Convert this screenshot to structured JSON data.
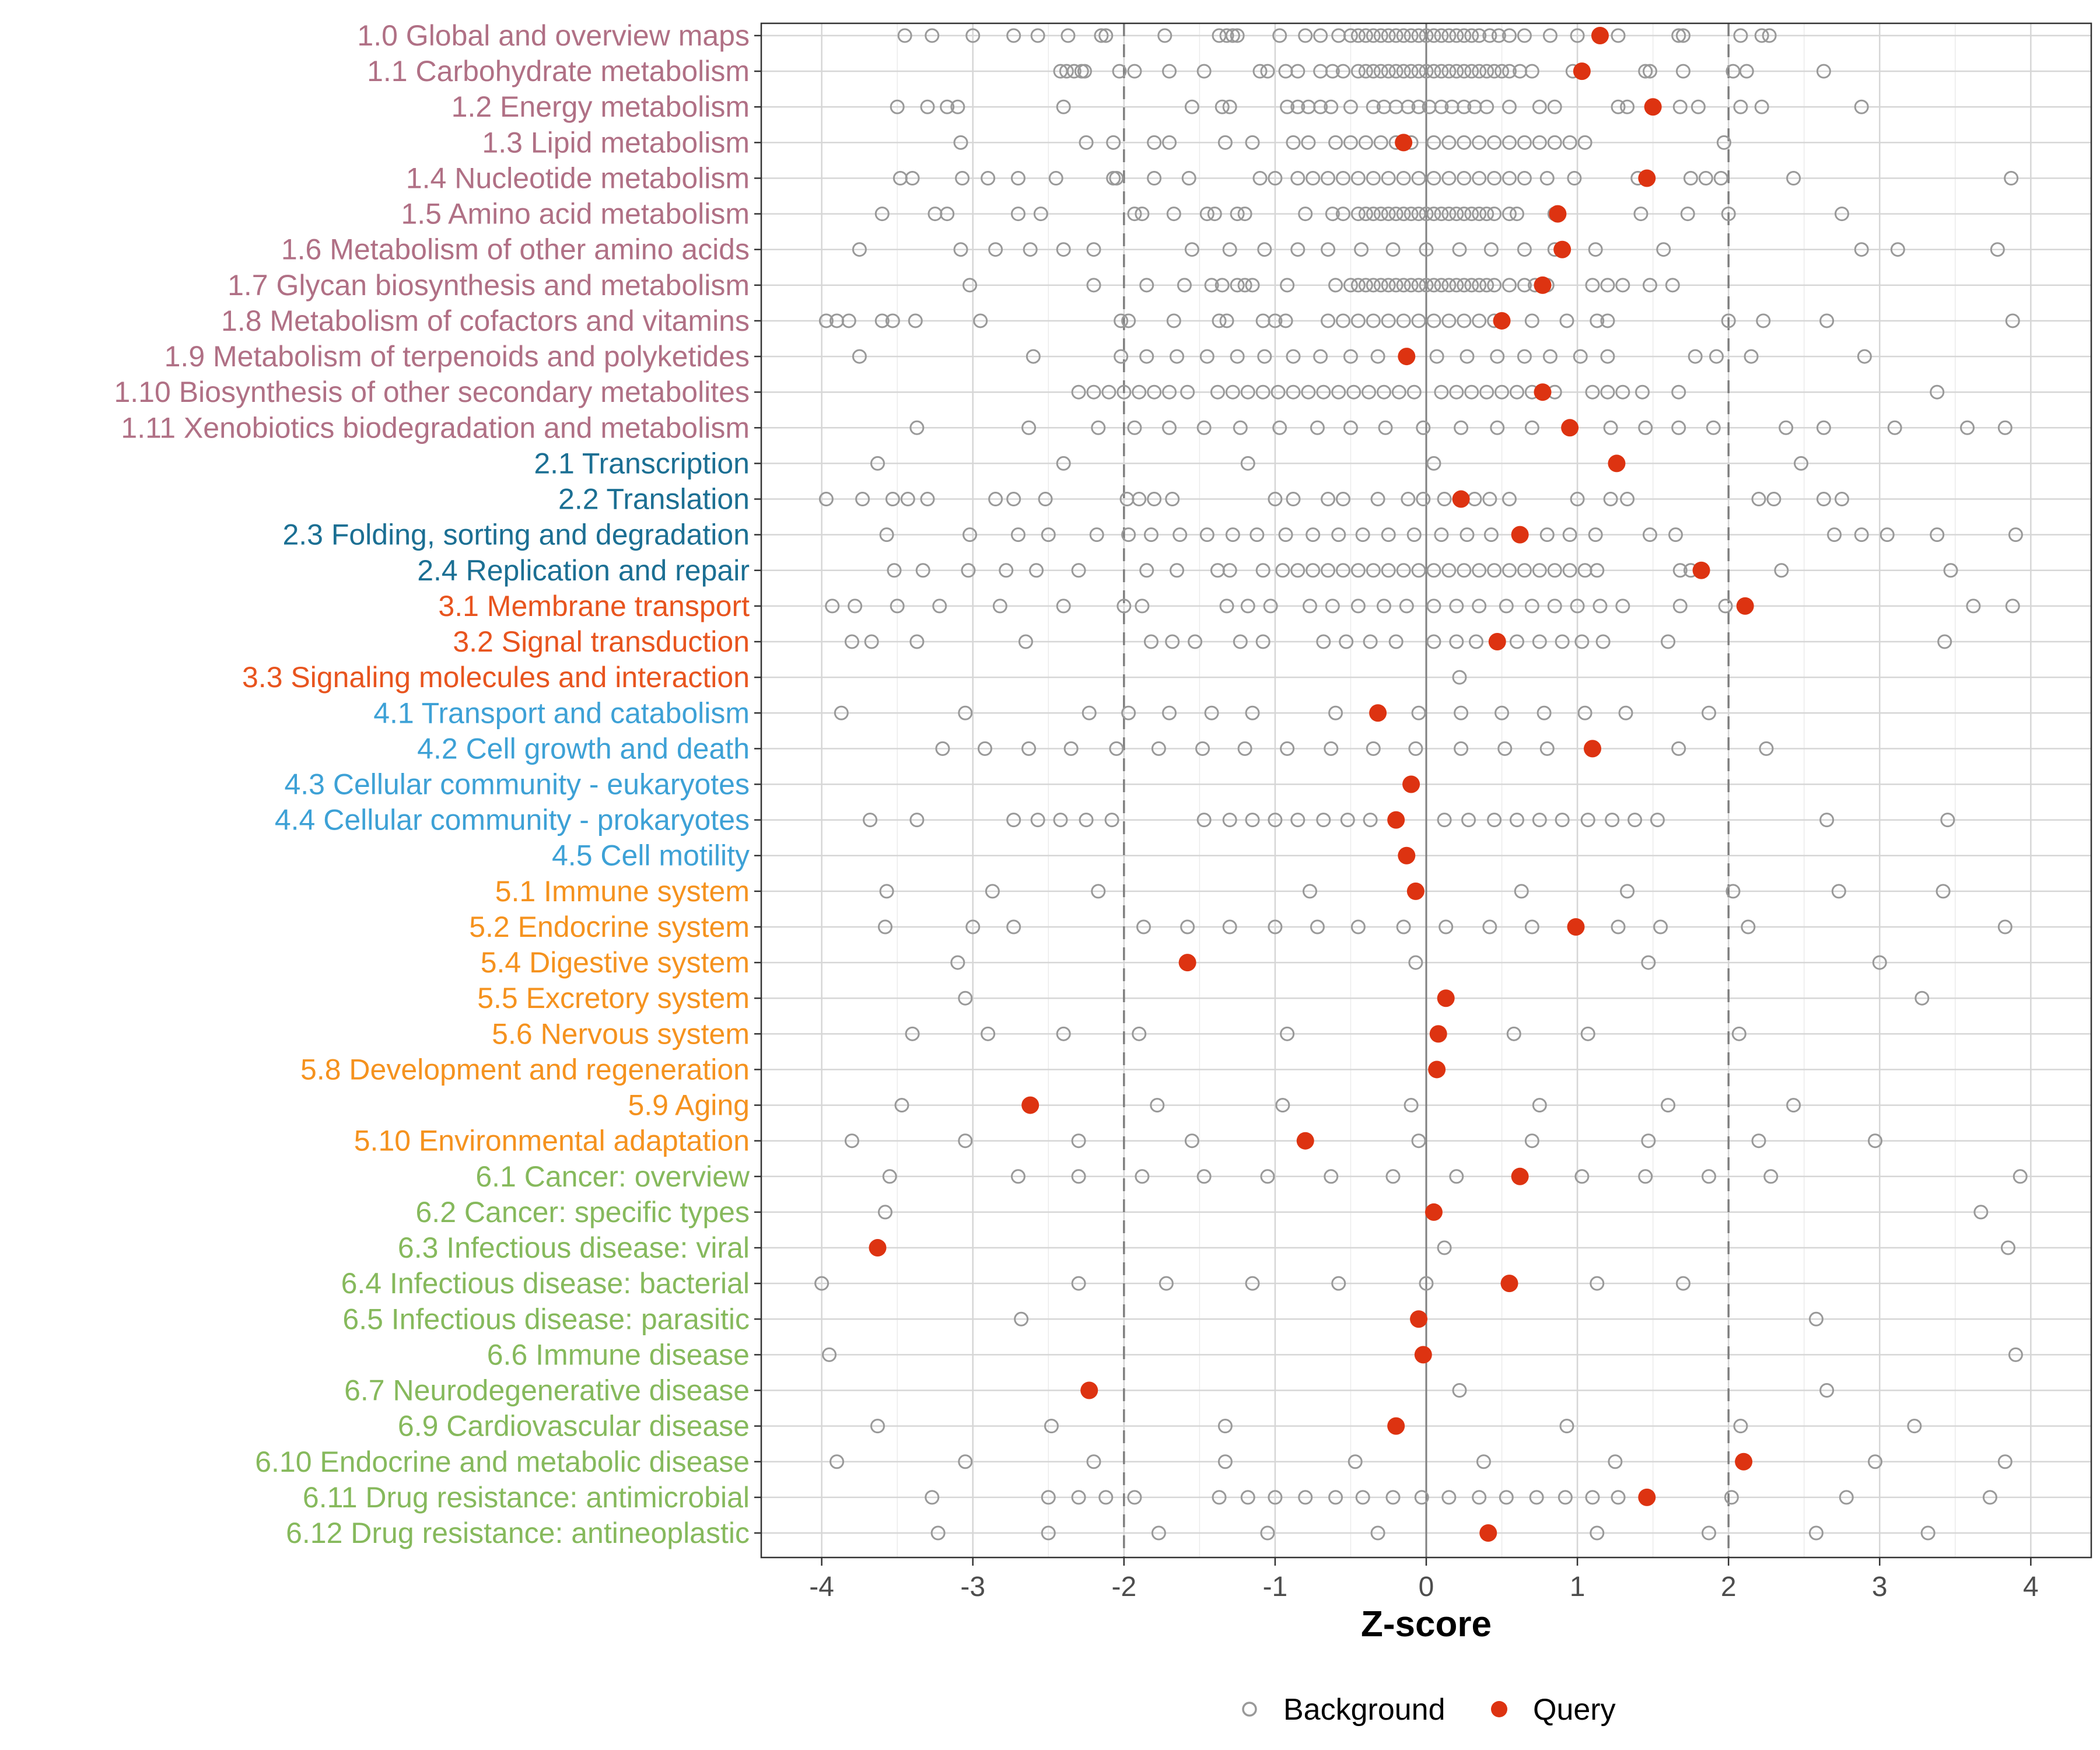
{
  "chart_data": {
    "type": "scatter",
    "xlabel": "Z-score",
    "ylabel": "",
    "xlim": [
      -4.4,
      4.4
    ],
    "xticks": [
      -4,
      -3,
      -2,
      -1,
      0,
      1,
      2,
      3,
      4
    ],
    "xtick_labels": [
      "-4",
      "-3",
      "-2",
      "-1",
      "0",
      "1",
      "2",
      "3",
      "4"
    ],
    "reference_lines": {
      "solid": 0,
      "dashed": [
        -2,
        2
      ]
    },
    "grid": true,
    "legend": {
      "position": "bottom",
      "entries": [
        {
          "label": "Background",
          "marker": "open-circle",
          "color": "#999999"
        },
        {
          "label": "Query",
          "marker": "filled-circle",
          "color": "#DD3311"
        }
      ]
    },
    "group_colors": {
      "1": "#B07085",
      "2": "#1B6F93",
      "3": "#E8541E",
      "4": "#3DA1D6",
      "5": "#F5921E",
      "6": "#86B95C"
    },
    "categories": [
      {
        "label": "1.0 Global and overview maps",
        "group": "1",
        "query": 1.15,
        "background": [
          -3.45,
          -3.27,
          -3.0,
          -2.73,
          -2.57,
          -2.37,
          -2.15,
          -2.12,
          -1.73,
          -1.37,
          -1.32,
          -1.28,
          -1.25,
          -0.97,
          -0.8,
          -0.7,
          -0.58,
          -0.5,
          -0.45,
          -0.4,
          -0.35,
          -0.3,
          -0.25,
          -0.2,
          -0.15,
          -0.1,
          -0.05,
          0.0,
          0.05,
          0.1,
          0.15,
          0.2,
          0.25,
          0.3,
          0.35,
          0.42,
          0.48,
          0.55,
          0.65,
          0.82,
          1.0,
          1.27,
          1.67,
          1.7,
          2.08,
          2.22,
          2.27
        ]
      },
      {
        "label": "1.1 Carbohydrate metabolism",
        "group": "1",
        "query": 1.03,
        "background": [
          -2.42,
          -2.38,
          -2.33,
          -2.28,
          -2.26,
          -2.03,
          -1.93,
          -1.7,
          -1.47,
          -1.1,
          -1.05,
          -0.93,
          -0.85,
          -0.7,
          -0.62,
          -0.55,
          -0.45,
          -0.4,
          -0.35,
          -0.3,
          -0.25,
          -0.2,
          -0.15,
          -0.1,
          -0.05,
          0.0,
          0.05,
          0.1,
          0.15,
          0.2,
          0.25,
          0.3,
          0.35,
          0.4,
          0.45,
          0.5,
          0.55,
          0.62,
          0.7,
          0.97,
          1.45,
          1.48,
          1.7,
          2.03,
          2.12,
          2.63
        ]
      },
      {
        "label": "1.2 Energy metabolism",
        "group": "1",
        "query": 1.5,
        "background": [
          -3.5,
          -3.3,
          -3.17,
          -3.1,
          -2.4,
          -1.55,
          -1.35,
          -1.3,
          -0.92,
          -0.85,
          -0.78,
          -0.7,
          -0.63,
          -0.5,
          -0.35,
          -0.28,
          -0.2,
          -0.12,
          -0.05,
          0.02,
          0.1,
          0.17,
          0.25,
          0.32,
          0.4,
          0.55,
          0.75,
          0.85,
          1.27,
          1.33,
          1.68,
          1.8,
          2.08,
          2.22,
          2.88
        ]
      },
      {
        "label": "1.3 Lipid metabolism",
        "group": "1",
        "query": -0.15,
        "background": [
          -3.08,
          -2.25,
          -2.07,
          -1.8,
          -1.7,
          -1.33,
          -1.15,
          -0.88,
          -0.78,
          -0.6,
          -0.5,
          -0.4,
          -0.3,
          -0.2,
          -0.1,
          0.05,
          0.15,
          0.25,
          0.35,
          0.45,
          0.55,
          0.65,
          0.75,
          0.85,
          0.95,
          1.05,
          1.97
        ]
      },
      {
        "label": "1.4 Nucleotide metabolism",
        "group": "1",
        "query": 1.46,
        "background": [
          -3.48,
          -3.4,
          -3.07,
          -2.9,
          -2.7,
          -2.45,
          -2.07,
          -2.05,
          -1.8,
          -1.57,
          -1.1,
          -1.0,
          -0.85,
          -0.75,
          -0.65,
          -0.55,
          -0.45,
          -0.35,
          -0.25,
          -0.15,
          -0.05,
          0.05,
          0.15,
          0.25,
          0.35,
          0.45,
          0.55,
          0.65,
          0.8,
          0.98,
          1.4,
          1.75,
          1.85,
          1.95,
          2.43,
          3.87
        ]
      },
      {
        "label": "1.5 Amino acid metabolism",
        "group": "1",
        "query": 0.87,
        "background": [
          -3.6,
          -3.25,
          -3.17,
          -2.7,
          -2.55,
          -1.93,
          -1.88,
          -1.67,
          -1.45,
          -1.4,
          -1.25,
          -1.2,
          -0.8,
          -0.62,
          -0.55,
          -0.45,
          -0.4,
          -0.35,
          -0.3,
          -0.25,
          -0.2,
          -0.15,
          -0.1,
          -0.05,
          0.0,
          0.05,
          0.1,
          0.15,
          0.2,
          0.25,
          0.3,
          0.35,
          0.4,
          0.45,
          0.55,
          0.6,
          0.85,
          1.42,
          1.73,
          2.0,
          2.75
        ]
      },
      {
        "label": "1.6 Metabolism of other amino acids",
        "group": "1",
        "query": 0.9,
        "background": [
          -3.75,
          -3.08,
          -2.85,
          -2.62,
          -2.4,
          -2.2,
          -1.55,
          -1.3,
          -1.07,
          -0.85,
          -0.65,
          -0.43,
          -0.22,
          0.0,
          0.22,
          0.43,
          0.65,
          0.85,
          1.12,
          1.57,
          2.88,
          3.12,
          3.78
        ]
      },
      {
        "label": "1.7 Glycan biosynthesis and metabolism",
        "group": "1",
        "query": 0.77,
        "background": [
          -3.02,
          -2.2,
          -1.85,
          -1.6,
          -1.42,
          -1.35,
          -1.25,
          -1.2,
          -1.15,
          -0.92,
          -0.6,
          -0.5,
          -0.45,
          -0.4,
          -0.35,
          -0.3,
          -0.25,
          -0.2,
          -0.15,
          -0.1,
          -0.05,
          0.0,
          0.05,
          0.1,
          0.15,
          0.2,
          0.25,
          0.3,
          0.35,
          0.4,
          0.45,
          0.55,
          0.65,
          0.72,
          0.8,
          1.1,
          1.2,
          1.3,
          1.48,
          1.63
        ]
      },
      {
        "label": "1.8 Metabolism of cofactors and vitamins",
        "group": "1",
        "query": 0.5,
        "background": [
          -3.97,
          -3.9,
          -3.82,
          -3.6,
          -3.53,
          -3.38,
          -2.95,
          -2.02,
          -1.97,
          -1.67,
          -1.37,
          -1.32,
          -1.08,
          -1.0,
          -0.93,
          -0.65,
          -0.55,
          -0.45,
          -0.35,
          -0.25,
          -0.15,
          -0.05,
          0.05,
          0.15,
          0.25,
          0.35,
          0.45,
          0.7,
          0.93,
          1.13,
          1.2,
          2.0,
          2.23,
          2.65,
          3.88
        ]
      },
      {
        "label": "1.9 Metabolism of terpenoids and polyketides",
        "group": "1",
        "query": -0.13,
        "background": [
          -3.75,
          -2.6,
          -2.02,
          -1.85,
          -1.65,
          -1.45,
          -1.25,
          -1.07,
          -0.88,
          -0.7,
          -0.5,
          -0.32,
          0.07,
          0.27,
          0.47,
          0.65,
          0.82,
          1.02,
          1.2,
          1.78,
          1.92,
          2.15,
          2.9
        ]
      },
      {
        "label": "1.10 Biosynthesis of other secondary metabolites",
        "group": "1",
        "query": 0.77,
        "background": [
          -2.3,
          -2.2,
          -2.1,
          -2.0,
          -1.9,
          -1.8,
          -1.7,
          -1.58,
          -1.38,
          -1.28,
          -1.18,
          -1.08,
          -0.98,
          -0.88,
          -0.78,
          -0.68,
          -0.58,
          -0.48,
          -0.38,
          -0.28,
          -0.18,
          -0.08,
          0.1,
          0.2,
          0.3,
          0.4,
          0.5,
          0.6,
          0.7,
          0.85,
          1.1,
          1.2,
          1.3,
          1.43,
          1.67,
          3.38
        ]
      },
      {
        "label": "1.11 Xenobiotics biodegradation and metabolism",
        "group": "1",
        "query": 0.95,
        "background": [
          -3.37,
          -2.63,
          -2.17,
          -1.93,
          -1.7,
          -1.47,
          -1.23,
          -0.97,
          -0.72,
          -0.5,
          -0.27,
          -0.02,
          0.23,
          0.47,
          0.7,
          1.22,
          1.45,
          1.67,
          1.9,
          2.38,
          2.63,
          3.1,
          3.58,
          3.83
        ]
      },
      {
        "label": "2.1 Transcription",
        "group": "2",
        "query": 1.26,
        "background": [
          -3.63,
          -2.4,
          -1.18,
          0.05,
          2.48
        ]
      },
      {
        "label": "2.2 Translation",
        "group": "2",
        "query": 0.23,
        "background": [
          -3.97,
          -3.73,
          -3.53,
          -3.43,
          -3.3,
          -2.85,
          -2.73,
          -2.52,
          -1.98,
          -1.9,
          -1.8,
          -1.68,
          -1.0,
          -0.88,
          -0.65,
          -0.55,
          -0.32,
          -0.12,
          -0.02,
          0.12,
          0.32,
          0.42,
          0.55,
          1.0,
          1.22,
          1.33,
          2.2,
          2.3,
          2.63,
          2.75
        ]
      },
      {
        "label": "2.3 Folding, sorting and degradation",
        "group": "2",
        "query": 0.62,
        "background": [
          -3.57,
          -3.02,
          -2.7,
          -2.5,
          -2.18,
          -1.97,
          -1.82,
          -1.63,
          -1.45,
          -1.28,
          -1.12,
          -0.93,
          -0.75,
          -0.58,
          -0.42,
          -0.25,
          -0.08,
          0.1,
          0.27,
          0.43,
          0.8,
          0.95,
          1.12,
          1.48,
          1.65,
          2.7,
          2.88,
          3.05,
          3.38,
          3.9
        ]
      },
      {
        "label": "2.4 Replication and repair",
        "group": "2",
        "query": 1.82,
        "background": [
          -3.52,
          -3.33,
          -3.03,
          -2.78,
          -2.58,
          -2.3,
          -1.85,
          -1.65,
          -1.38,
          -1.3,
          -1.08,
          -0.95,
          -0.85,
          -0.75,
          -0.65,
          -0.55,
          -0.45,
          -0.35,
          -0.25,
          -0.15,
          -0.05,
          0.05,
          0.15,
          0.25,
          0.35,
          0.45,
          0.55,
          0.65,
          0.75,
          0.85,
          0.95,
          1.05,
          1.13,
          1.68,
          1.75,
          2.35,
          3.47
        ]
      },
      {
        "label": "3.1 Membrane transport",
        "group": "3",
        "query": 2.11,
        "background": [
          -3.93,
          -3.78,
          -3.5,
          -3.22,
          -2.82,
          -2.4,
          -2.0,
          -1.88,
          -1.32,
          -1.18,
          -1.03,
          -0.77,
          -0.62,
          -0.45,
          -0.28,
          -0.13,
          0.05,
          0.2,
          0.35,
          0.53,
          0.7,
          0.85,
          1.0,
          1.15,
          1.3,
          1.68,
          1.98,
          3.62,
          3.88
        ]
      },
      {
        "label": "3.2 Signal transduction",
        "group": "3",
        "query": 0.47,
        "background": [
          -3.8,
          -3.67,
          -3.37,
          -2.65,
          -1.82,
          -1.68,
          -1.53,
          -1.23,
          -1.08,
          -0.68,
          -0.53,
          -0.37,
          -0.2,
          0.05,
          0.2,
          0.33,
          0.6,
          0.75,
          0.9,
          1.03,
          1.17,
          1.6,
          3.43
        ]
      },
      {
        "label": "3.3 Signaling molecules and interaction",
        "group": "3",
        "query": null,
        "background": [
          0.22
        ]
      },
      {
        "label": "4.1 Transport and catabolism",
        "group": "4",
        "query": -0.32,
        "background": [
          -3.87,
          -3.05,
          -2.23,
          -1.97,
          -1.7,
          -1.42,
          -1.15,
          -0.6,
          -0.05,
          0.23,
          0.5,
          0.78,
          1.05,
          1.32,
          1.87
        ]
      },
      {
        "label": "4.2 Cell growth and death",
        "group": "4",
        "query": 1.1,
        "background": [
          -3.2,
          -2.92,
          -2.63,
          -2.35,
          -2.05,
          -1.77,
          -1.48,
          -1.2,
          -0.92,
          -0.63,
          -0.35,
          -0.07,
          0.23,
          0.52,
          0.8,
          1.67,
          2.25
        ]
      },
      {
        "label": "4.3 Cellular community - eukaryotes",
        "group": "4",
        "query": -0.1,
        "background": []
      },
      {
        "label": "4.4 Cellular community - prokaryotes",
        "group": "4",
        "query": -0.2,
        "background": [
          -3.68,
          -3.37,
          -2.73,
          -2.57,
          -2.42,
          -2.25,
          -2.08,
          -1.47,
          -1.3,
          -1.15,
          -1.0,
          -0.85,
          -0.68,
          -0.52,
          -0.37,
          0.12,
          0.28,
          0.45,
          0.6,
          0.75,
          0.9,
          1.07,
          1.23,
          1.38,
          1.53,
          2.65,
          3.45
        ]
      },
      {
        "label": "4.5 Cell motility",
        "group": "4",
        "query": -0.13,
        "background": []
      },
      {
        "label": "5.1 Immune system",
        "group": "5",
        "query": -0.07,
        "background": [
          -3.57,
          -2.87,
          -2.17,
          -0.77,
          0.63,
          1.33,
          2.03,
          2.73,
          3.42
        ]
      },
      {
        "label": "5.2 Endocrine system",
        "group": "5",
        "query": 0.99,
        "background": [
          -3.58,
          -3.0,
          -2.73,
          -1.87,
          -1.58,
          -1.3,
          -1.0,
          -0.72,
          -0.45,
          -0.15,
          0.13,
          0.42,
          0.7,
          1.27,
          1.55,
          2.13,
          3.83
        ]
      },
      {
        "label": "5.4 Digestive system",
        "group": "5",
        "query": -1.58,
        "background": [
          -3.1,
          -0.07,
          1.47,
          3.0
        ]
      },
      {
        "label": "5.5 Excretory system",
        "group": "5",
        "query": 0.13,
        "background": [
          -3.05,
          3.28
        ]
      },
      {
        "label": "5.6 Nervous system",
        "group": "5",
        "query": 0.08,
        "background": [
          -3.4,
          -2.9,
          -2.4,
          -1.9,
          -0.92,
          0.58,
          1.07,
          2.07
        ]
      },
      {
        "label": "5.8 Development and regeneration",
        "group": "5",
        "query": 0.07,
        "background": []
      },
      {
        "label": "5.9 Aging",
        "group": "5",
        "query": -2.62,
        "background": [
          -3.47,
          -1.78,
          -0.95,
          -0.1,
          0.75,
          1.6,
          2.43
        ]
      },
      {
        "label": "5.10 Environmental adaptation",
        "group": "5",
        "query": -0.8,
        "background": [
          -3.8,
          -3.05,
          -2.3,
          -1.55,
          -0.05,
          0.7,
          1.47,
          2.2,
          2.97
        ]
      },
      {
        "label": "6.1 Cancer: overview",
        "group": "6",
        "query": 0.62,
        "background": [
          -3.55,
          -2.7,
          -2.3,
          -1.88,
          -1.47,
          -1.05,
          -0.63,
          -0.22,
          0.2,
          1.03,
          1.45,
          1.87,
          2.28,
          3.93
        ]
      },
      {
        "label": "6.2 Cancer: specific types",
        "group": "6",
        "query": 0.05,
        "background": [
          -3.58,
          3.67
        ]
      },
      {
        "label": "6.3 Infectious disease: viral",
        "group": "6",
        "query": -3.63,
        "background": [
          0.12,
          3.85
        ]
      },
      {
        "label": "6.4 Infectious disease: bacterial",
        "group": "6",
        "query": 0.55,
        "background": [
          -4.0,
          -2.3,
          -1.72,
          -1.15,
          -0.58,
          0.0,
          1.13,
          1.7
        ]
      },
      {
        "label": "6.5 Infectious disease: parasitic",
        "group": "6",
        "query": -0.05,
        "background": [
          -2.68,
          2.58
        ]
      },
      {
        "label": "6.6 Immune disease",
        "group": "6",
        "query": -0.02,
        "background": [
          -3.95,
          3.9
        ]
      },
      {
        "label": "6.7 Neurodegenerative disease",
        "group": "6",
        "query": -2.23,
        "background": [
          0.22,
          2.65
        ]
      },
      {
        "label": "6.9 Cardiovascular disease",
        "group": "6",
        "query": -0.2,
        "background": [
          -3.63,
          -2.48,
          -1.33,
          0.93,
          2.08,
          3.23
        ]
      },
      {
        "label": "6.10 Endocrine and metabolic disease",
        "group": "6",
        "query": 2.1,
        "background": [
          -3.9,
          -3.05,
          -2.2,
          -1.33,
          -0.47,
          0.38,
          1.25,
          2.97,
          3.83
        ]
      },
      {
        "label": "6.11 Drug resistance: antimicrobial",
        "group": "6",
        "query": 1.46,
        "background": [
          -3.27,
          -2.5,
          -2.3,
          -2.12,
          -1.93,
          -1.37,
          -1.18,
          -1.0,
          -0.8,
          -0.6,
          -0.42,
          -0.22,
          -0.03,
          0.15,
          0.35,
          0.53,
          0.73,
          0.92,
          1.1,
          1.27,
          2.02,
          2.78,
          3.73
        ]
      },
      {
        "label": "6.12 Drug resistance: antineoplastic",
        "group": "6",
        "query": 0.41,
        "background": [
          -3.23,
          -2.5,
          -1.77,
          -1.05,
          -0.32,
          1.13,
          1.87,
          2.58,
          3.32
        ]
      }
    ]
  }
}
